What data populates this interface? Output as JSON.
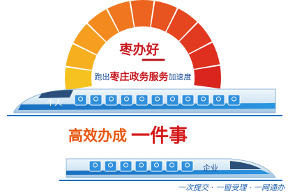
{
  "header": {
    "title": "枣办好",
    "slogan": {
      "prefix": "跑出",
      "highlight": "枣庄政务服务",
      "suffix": "加速度"
    }
  },
  "trains": [
    {
      "label": "个人"
    },
    {
      "label": "企业"
    }
  ],
  "headline": {
    "main": "高效办成",
    "emphasis": "一件事"
  },
  "footer": "一次提交 · 一窗受理 · 一网通办"
}
